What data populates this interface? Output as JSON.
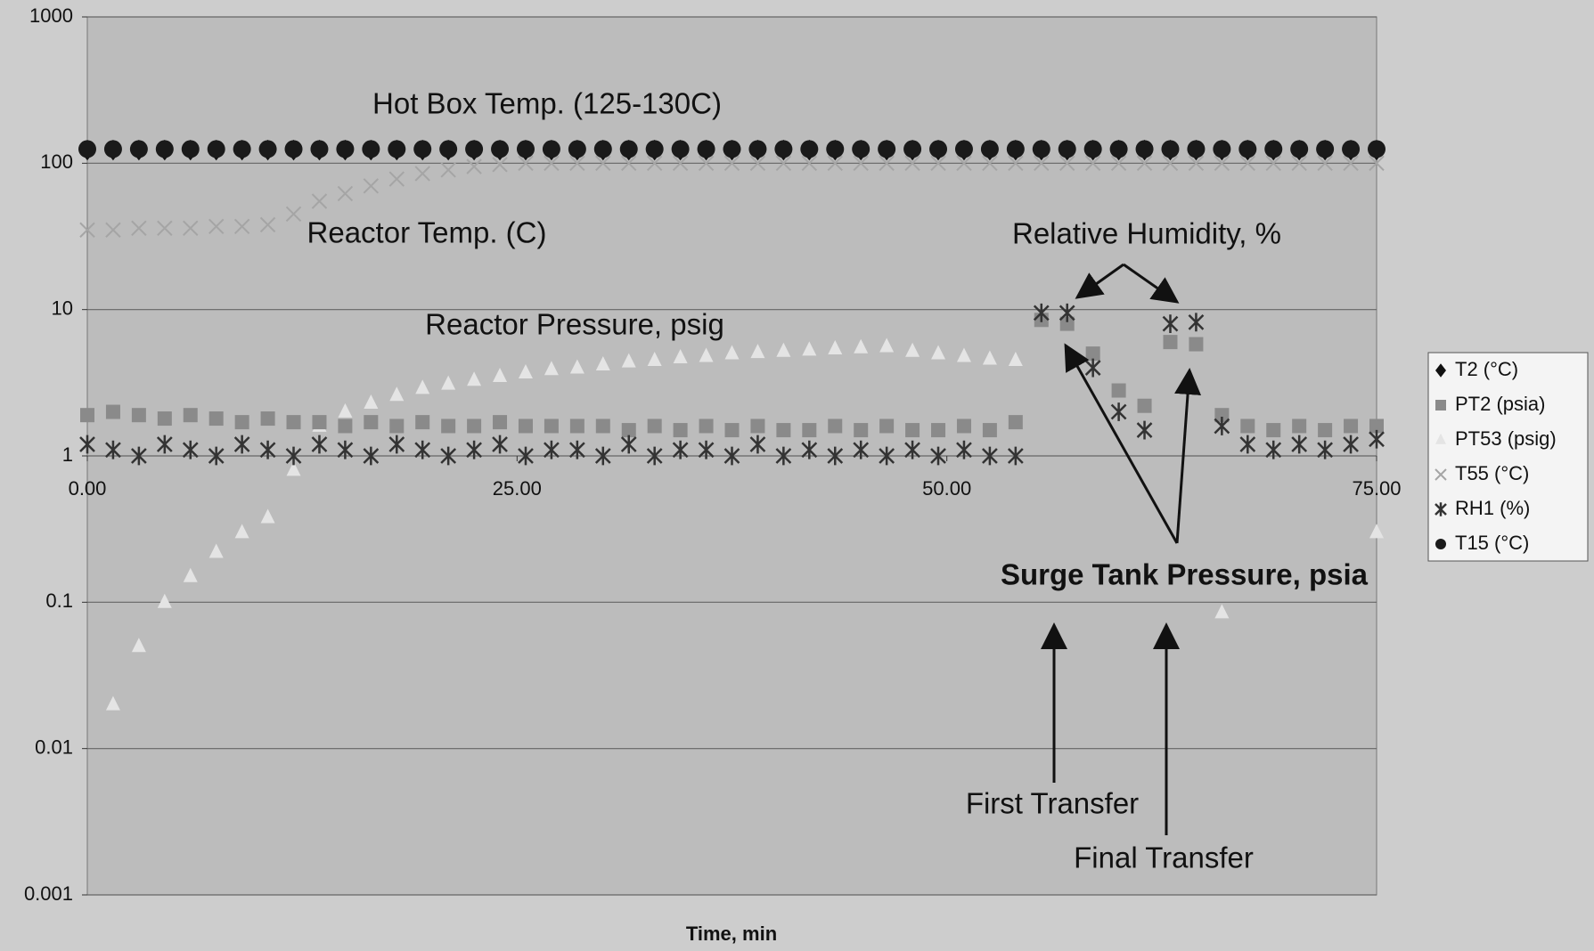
{
  "chart_data": {
    "type": "scatter",
    "x_label": "Time, min",
    "x": [
      0,
      1.5,
      3,
      4.5,
      6,
      7.5,
      9,
      10.5,
      12,
      13.5,
      15,
      16.5,
      18,
      19.5,
      21,
      22.5,
      24,
      25.5,
      27,
      28.5,
      30,
      31.5,
      33,
      34.5,
      36,
      37.5,
      39,
      40.5,
      42,
      43.5,
      45,
      46.5,
      48,
      49.5,
      51,
      52.5,
      54,
      55.5,
      57,
      58.5,
      60,
      61.5,
      63,
      64.5,
      66,
      67.5,
      69,
      70.5,
      72,
      73.5,
      75
    ],
    "xlim": [
      0,
      75
    ],
    "xticks": [
      {
        "value": 0,
        "label": "0.00"
      },
      {
        "value": 25,
        "label": "25.00"
      },
      {
        "value": 50,
        "label": "50.00"
      },
      {
        "value": 75,
        "label": "75.00"
      }
    ],
    "xaxis_at": 1,
    "ylim": [
      0.001,
      1000
    ],
    "yticks": [
      0.001,
      0.01,
      0.1,
      1,
      10,
      100,
      1000
    ],
    "log_y": true,
    "grid": true,
    "legend": "right",
    "series": [
      {
        "name": "T2 (°C)",
        "color": "#111111",
        "marker": "diamond",
        "values": [
          123,
          123,
          123,
          123,
          123,
          123,
          123,
          123,
          123,
          123,
          123,
          123,
          123,
          123,
          123,
          123,
          123,
          123,
          123,
          123,
          123,
          123,
          123,
          123,
          123,
          123,
          123,
          123,
          123,
          123,
          123,
          123,
          123,
          123,
          123,
          123,
          123,
          123,
          123,
          123,
          123,
          123,
          123,
          123,
          123,
          123,
          123,
          123,
          123,
          123,
          123
        ]
      },
      {
        "name": "PT2 (psia)",
        "color": "#8a8a8a",
        "marker": "square",
        "values": [
          1.9,
          2.0,
          1.9,
          1.8,
          1.9,
          1.8,
          1.7,
          1.8,
          1.7,
          1.7,
          1.6,
          1.7,
          1.6,
          1.7,
          1.6,
          1.6,
          1.7,
          1.6,
          1.6,
          1.6,
          1.6,
          1.5,
          1.6,
          1.5,
          1.6,
          1.5,
          1.6,
          1.5,
          1.5,
          1.6,
          1.5,
          1.6,
          1.5,
          1.5,
          1.6,
          1.5,
          1.7,
          8.5,
          8.0,
          5.0,
          2.8,
          2.2,
          6.0,
          5.8,
          1.9,
          1.6,
          1.5,
          1.6,
          1.5,
          1.6,
          1.6
        ]
      },
      {
        "name": "PT53 (psig)",
        "color": "#e4e4e4",
        "marker": "triangle",
        "values": [
          null,
          0.02,
          0.05,
          0.1,
          0.15,
          0.22,
          0.3,
          0.38,
          0.8,
          1.6,
          2.0,
          2.3,
          2.6,
          2.9,
          3.1,
          3.3,
          3.5,
          3.7,
          3.9,
          4.0,
          4.2,
          4.4,
          4.5,
          4.7,
          4.8,
          5.0,
          5.1,
          5.2,
          5.3,
          5.4,
          5.5,
          5.6,
          5.2,
          5.0,
          4.8,
          4.6,
          4.5,
          null,
          null,
          null,
          null,
          null,
          null,
          null,
          0.085,
          null,
          null,
          null,
          null,
          null,
          0.3
        ]
      },
      {
        "name": "T55 (°C)",
        "color": "#a5a5a5",
        "marker": "x",
        "values": [
          35,
          35,
          36,
          36,
          36,
          37,
          37,
          38,
          45,
          55,
          62,
          70,
          78,
          85,
          90,
          95,
          98,
          100,
          100,
          100,
          100,
          100,
          100,
          100,
          100,
          100,
          100,
          100,
          100,
          100,
          100,
          100,
          100,
          100,
          100,
          100,
          100,
          100,
          100,
          100,
          100,
          100,
          100,
          100,
          100,
          100,
          100,
          100,
          100,
          100,
          100
        ]
      },
      {
        "name": "RH1 (%)",
        "color": "#333333",
        "marker": "asterisk",
        "values": [
          1.2,
          1.1,
          1.0,
          1.2,
          1.1,
          1.0,
          1.2,
          1.1,
          1.0,
          1.2,
          1.1,
          1.0,
          1.2,
          1.1,
          1.0,
          1.1,
          1.2,
          1.0,
          1.1,
          1.1,
          1.0,
          1.2,
          1.0,
          1.1,
          1.1,
          1.0,
          1.2,
          1.0,
          1.1,
          1.0,
          1.1,
          1.0,
          1.1,
          1.0,
          1.1,
          1.0,
          1.0,
          9.5,
          9.5,
          4.0,
          2.0,
          1.5,
          8.0,
          8.2,
          1.6,
          1.2,
          1.1,
          1.2,
          1.1,
          1.2,
          1.3
        ]
      },
      {
        "name": "T15 (°C)",
        "color": "#1a1a1a",
        "marker": "circle",
        "values": [
          125,
          125,
          125,
          125,
          125,
          125,
          125,
          125,
          125,
          125,
          125,
          125,
          125,
          125,
          125,
          125,
          125,
          125,
          125,
          125,
          125,
          125,
          125,
          125,
          125,
          125,
          125,
          125,
          125,
          125,
          125,
          125,
          125,
          125,
          125,
          125,
          125,
          125,
          125,
          125,
          125,
          125,
          125,
          125,
          125,
          125,
          125,
          125,
          125,
          125,
          125
        ]
      }
    ],
    "annotations": [
      "Hot Box Temp. (125-130C)",
      "Reactor Temp. (C)",
      "Relative Humidity, %",
      "Reactor Pressure, psig",
      "Surge Tank Pressure, psia",
      "First Transfer",
      "Final Transfer"
    ]
  }
}
